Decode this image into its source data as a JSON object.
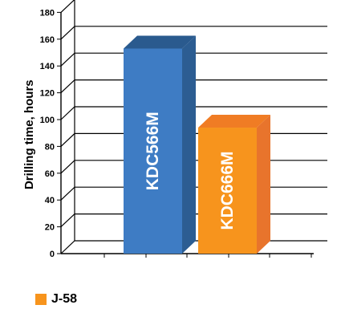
{
  "chart_data": {
    "type": "bar",
    "categories": [
      "KDC566M",
      "KDC666M"
    ],
    "values": [
      153,
      94
    ],
    "ylabel": "Drilling time, hours",
    "xlabel": "",
    "ylim": [
      0,
      180
    ],
    "yticks": [
      0,
      20,
      40,
      60,
      80,
      100,
      120,
      140,
      160,
      180
    ],
    "grid": true,
    "legend": {
      "placement": "bottom-left",
      "entries": [
        {
          "label": "J-58",
          "color": "#f7941d"
        }
      ]
    },
    "colors": {
      "KDC566M": {
        "front": "#3e7cc4",
        "side": "#2c5d92",
        "top": "#2a5a8e"
      },
      "KDC666M": {
        "front": "#f7941d",
        "side": "#e8742c",
        "top": "#f07c24"
      }
    }
  }
}
